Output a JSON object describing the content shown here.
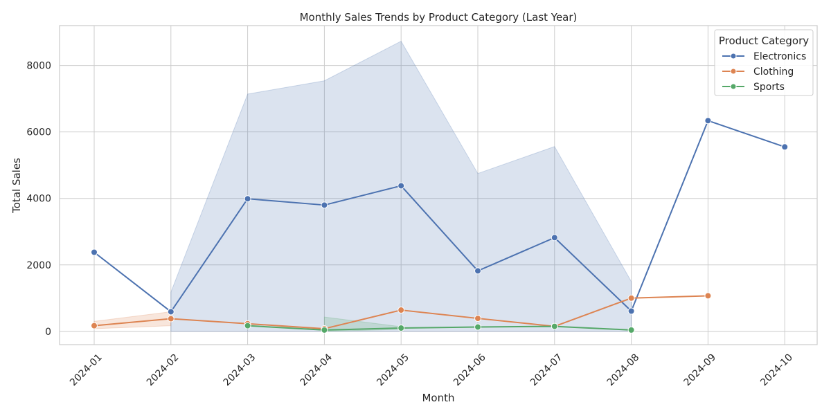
{
  "chart_data": {
    "type": "line",
    "title": "Monthly Sales Trends by Product Category (Last Year)",
    "xlabel": "Month",
    "ylabel": "Total Sales",
    "categories": [
      "2024-01",
      "2024-02",
      "2024-03",
      "2024-04",
      "2024-05",
      "2024-06",
      "2024-07",
      "2024-08",
      "2024-09",
      "2024-10"
    ],
    "ylim": [
      -400,
      9200
    ],
    "yticks": [
      0,
      2000,
      4000,
      6000,
      8000
    ],
    "grid": true,
    "legend": {
      "title": "Product Category",
      "position": "top-right"
    },
    "series": [
      {
        "name": "Electronics",
        "color": "#4c72b0",
        "values": [
          2380,
          590,
          3990,
          3800,
          4380,
          1820,
          2820,
          610,
          6340,
          5550
        ],
        "ci_lower": [
          null,
          0,
          0,
          0,
          0,
          0,
          0,
          0,
          null,
          null
        ],
        "ci_upper": [
          null,
          1180,
          7140,
          7540,
          8730,
          4750,
          5560,
          1500,
          null,
          null
        ]
      },
      {
        "name": "Clothing",
        "color": "#dd8452",
        "values": [
          170,
          380,
          230,
          80,
          640,
          390,
          150,
          1000,
          1070,
          null
        ],
        "ci_lower": [
          80,
          170,
          null,
          null,
          600,
          null,
          null,
          null,
          null,
          null
        ],
        "ci_upper": [
          300,
          590,
          null,
          null,
          680,
          null,
          null,
          null,
          null,
          null
        ]
      },
      {
        "name": "Sports",
        "color": "#55a868",
        "values": [
          null,
          null,
          170,
          40,
          100,
          130,
          150,
          40,
          null,
          null
        ],
        "ci_lower": [
          null,
          null,
          null,
          0,
          60,
          null,
          null,
          null,
          null,
          null
        ],
        "ci_upper": [
          null,
          null,
          null,
          430,
          140,
          null,
          null,
          null,
          null,
          null
        ]
      }
    ]
  }
}
